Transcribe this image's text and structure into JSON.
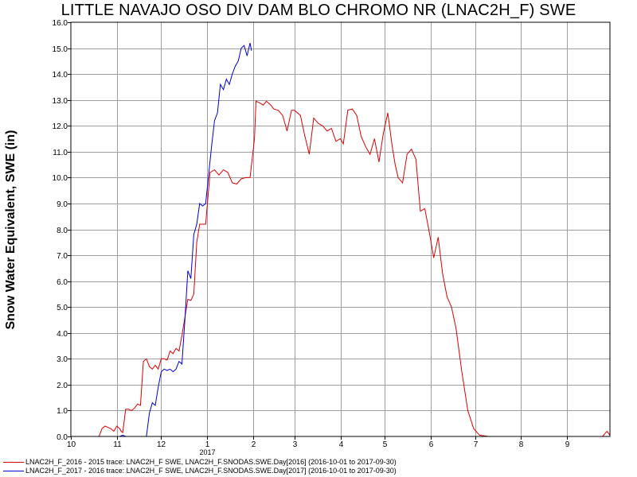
{
  "chart_data": {
    "type": "line",
    "title": "LITTLE NAVAJO OSO DIV DAM BLO CHROMO NR (LNAC2H_F) SWE",
    "xlabel": "",
    "ylabel": "Snow Water Equivalent, SWE (in)",
    "x_axis": {
      "type": "month",
      "range": [
        "2016-10-01",
        "2017-09-30"
      ],
      "tick_labels": [
        "10",
        "11",
        "12",
        "1",
        "2",
        "3",
        "4",
        "5",
        "6",
        "7",
        "8",
        "9"
      ],
      "year_label": "2017"
    },
    "ylim": [
      0,
      16
    ],
    "y_ticks": [
      "0.0",
      "1.0",
      "2.0",
      "3.0",
      "4.0",
      "5.0",
      "6.0",
      "7.0",
      "8.0",
      "9.0",
      "10.0",
      "11.0",
      "12.0",
      "13.0",
      "14.0",
      "15.0",
      "16.0"
    ],
    "grid": true,
    "legend_position": "bottom",
    "series": [
      {
        "name": "LNAC2H_F_2016 - 2015 trace: LNAC2H_F SWE, LNAC2H_F.SNODAS.SWE.Day[2016] (2016-10-01 to 2017-09-30)",
        "color": "#e00000",
        "x": [
          "2016-10-20",
          "2016-10-22",
          "2016-10-24",
          "2016-10-26",
          "2016-10-28",
          "2016-10-30",
          "2016-11-01",
          "2016-11-03",
          "2016-11-04",
          "2016-11-05",
          "2016-11-06",
          "2016-11-07",
          "2016-11-09",
          "2016-11-11",
          "2016-11-13",
          "2016-11-15",
          "2016-11-17",
          "2016-11-19",
          "2016-11-21",
          "2016-11-23",
          "2016-11-25",
          "2016-11-27",
          "2016-11-29",
          "2016-12-01",
          "2016-12-03",
          "2016-12-05",
          "2016-12-07",
          "2016-12-09",
          "2016-12-11",
          "2016-12-13",
          "2016-12-15",
          "2016-12-17",
          "2016-12-19",
          "2016-12-21",
          "2016-12-23",
          "2016-12-25",
          "2016-12-27",
          "2016-12-29",
          "2016-12-31",
          "2017-01-03",
          "2017-01-06",
          "2017-01-09",
          "2017-01-12",
          "2017-01-15",
          "2017-01-18",
          "2017-01-21",
          "2017-01-24",
          "2017-01-27",
          "2017-01-30",
          "2017-02-02",
          "2017-02-03",
          "2017-02-05",
          "2017-02-08",
          "2017-02-10",
          "2017-02-13",
          "2017-02-15",
          "2017-02-18",
          "2017-02-21",
          "2017-02-24",
          "2017-02-27",
          "2017-03-01",
          "2017-03-05",
          "2017-03-08",
          "2017-03-11",
          "2017-03-14",
          "2017-03-17",
          "2017-03-20",
          "2017-03-23",
          "2017-03-26",
          "2017-03-29",
          "2017-04-01",
          "2017-04-03",
          "2017-04-06",
          "2017-04-09",
          "2017-04-12",
          "2017-04-15",
          "2017-04-18",
          "2017-04-21",
          "2017-04-24",
          "2017-04-27",
          "2017-04-30",
          "2017-05-03",
          "2017-05-06",
          "2017-05-08",
          "2017-05-10",
          "2017-05-13",
          "2017-05-16",
          "2017-05-19",
          "2017-05-22",
          "2017-05-25",
          "2017-05-28",
          "2017-05-31",
          "2017-06-03",
          "2017-06-06",
          "2017-06-09",
          "2017-06-12",
          "2017-06-15",
          "2017-06-18",
          "2017-06-22",
          "2017-06-26",
          "2017-06-30",
          "2017-07-04",
          "2017-07-10",
          "2017-08-01",
          "2017-09-01",
          "2017-09-23",
          "2017-09-25",
          "2017-09-28",
          "2017-09-30"
        ],
        "y": [
          0.0,
          0.3,
          0.4,
          0.35,
          0.3,
          0.2,
          0.4,
          0.3,
          0.2,
          0.15,
          0.6,
          1.05,
          1.05,
          1.0,
          1.1,
          1.25,
          1.2,
          2.9,
          3.0,
          2.7,
          2.6,
          2.75,
          2.6,
          3.0,
          3.0,
          2.95,
          3.3,
          3.2,
          3.4,
          3.3,
          3.9,
          4.6,
          5.3,
          5.25,
          5.5,
          7.5,
          8.2,
          8.2,
          8.2,
          10.2,
          10.3,
          10.1,
          10.3,
          10.2,
          9.8,
          9.75,
          9.95,
          10.0,
          10.0,
          11.5,
          12.95,
          12.9,
          12.8,
          12.95,
          12.8,
          12.65,
          12.6,
          12.4,
          11.8,
          12.6,
          12.6,
          12.4,
          11.6,
          10.9,
          12.3,
          12.1,
          12.0,
          11.8,
          11.9,
          11.4,
          11.5,
          11.3,
          12.6,
          12.65,
          12.4,
          11.6,
          11.2,
          10.9,
          11.5,
          10.6,
          11.7,
          12.5,
          11.2,
          10.5,
          10.0,
          9.8,
          10.9,
          11.1,
          10.7,
          8.7,
          8.8,
          7.9,
          6.9,
          7.7,
          6.3,
          5.4,
          5.0,
          4.2,
          2.5,
          1.0,
          0.3,
          0.05,
          0.0,
          0.0,
          0.0,
          0.0,
          0.0,
          0.2,
          0.05
        ]
      },
      {
        "name": "LNAC2H_F_2017 - 2016 trace: LNAC2H_F SWE, LNAC2H_F.SNODAS.SWE.Day[2017] (2016-10-01 to 2017-09-30)",
        "color": "#0000e0",
        "x": [
          "2016-11-03",
          "2016-11-05",
          "2016-11-07",
          "2016-11-09",
          "2016-11-21",
          "2016-11-23",
          "2016-11-25",
          "2016-11-27",
          "2016-11-29",
          "2016-12-01",
          "2016-12-03",
          "2016-12-05",
          "2016-12-07",
          "2016-12-09",
          "2016-12-11",
          "2016-12-13",
          "2016-12-15",
          "2016-12-17",
          "2016-12-19",
          "2016-12-21",
          "2016-12-23",
          "2016-12-25",
          "2016-12-27",
          "2016-12-29",
          "2016-12-31",
          "2017-01-02",
          "2017-01-04",
          "2017-01-06",
          "2017-01-08",
          "2017-01-10",
          "2017-01-12",
          "2017-01-14",
          "2017-01-16",
          "2017-01-18",
          "2017-01-20",
          "2017-01-22",
          "2017-01-24",
          "2017-01-26",
          "2017-01-28",
          "2017-01-30",
          "2017-01-31"
        ],
        "y": [
          0.0,
          0.05,
          0.0,
          0.0,
          0.0,
          0.9,
          1.3,
          1.2,
          1.9,
          2.5,
          2.6,
          2.55,
          2.6,
          2.5,
          2.6,
          2.9,
          2.8,
          4.5,
          6.4,
          6.1,
          7.8,
          8.2,
          9.0,
          8.9,
          9.0,
          10.1,
          11.2,
          12.2,
          12.5,
          13.6,
          13.4,
          13.8,
          13.6,
          14.0,
          14.3,
          14.5,
          15.0,
          15.1,
          14.7,
          15.2,
          14.9
        ]
      }
    ]
  }
}
